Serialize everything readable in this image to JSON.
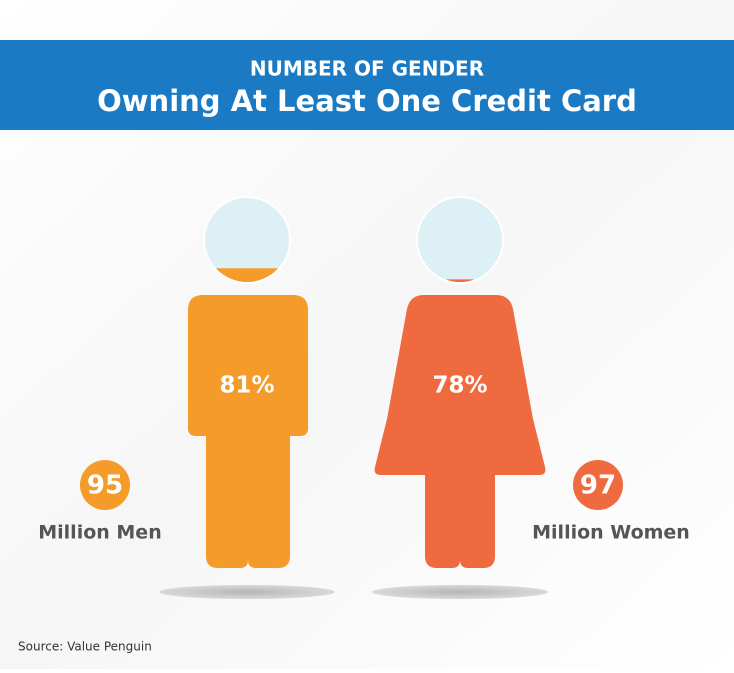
{
  "chart_data": {
    "type": "pictograph",
    "title": "NUMBER OF GENDER",
    "subtitle": "Owning At Least One Credit Card",
    "categories": [
      "Million Men",
      "Million Women"
    ],
    "values": [
      81,
      78
    ],
    "value_labels": [
      "81%",
      "78%"
    ],
    "counts": [
      95,
      97
    ],
    "colors": [
      "#f49b2a",
      "#ef6a3e"
    ],
    "source": "Source: Value Penguin"
  }
}
